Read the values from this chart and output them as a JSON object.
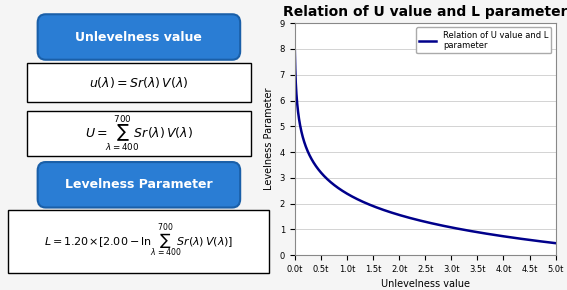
{
  "title": "Relation of U value and L parameter",
  "xlabel": "Unlevelness value",
  "ylabel": "Levelness Parameter",
  "legend_label": "Relation of U value and L\nparameter",
  "x_start": 0.01,
  "x_end": 5.01,
  "x_ticks": [
    0.01,
    0.51,
    1.01,
    1.51,
    2.01,
    2.51,
    3.01,
    3.51,
    4.01,
    4.51,
    5.01
  ],
  "x_tick_labels": [
    "0.0t",
    "0.5t",
    "1.0t",
    "1.5t",
    "2.0t",
    "2.5t",
    "3.0t",
    "3.5t",
    "4.0t",
    "4.5t",
    "5.0t"
  ],
  "y_min": 0,
  "y_max": 9,
  "y_ticks": [
    0,
    1,
    2,
    3,
    4,
    5,
    6,
    7,
    8,
    9
  ],
  "line_color": "#00008B",
  "line_width": 1.8,
  "bg_color": "#f0f0f0",
  "plot_bg_color": "#ffffff",
  "grid_color": "#cccccc",
  "title_fontsize": 10,
  "axis_label_fontsize": 7,
  "tick_fontsize": 6,
  "legend_fontsize": 6,
  "formula_a": 1.2,
  "formula_b": 2.0,
  "left_panel_bg": "#ffffff",
  "badge_color_top": "#1a6abf",
  "badge_color_bottom": "#3399ff",
  "badge_text_color": "#ffffff",
  "badge_text_1": "Unlevelness value",
  "badge_text_2": "Levelness Parameter",
  "formula1": "$u(\\lambda) = Sr(\\lambda)\\,V(\\lambda)$",
  "formula2": "$U = \\sum_{\\lambda=400}^{700} Sr(\\lambda)\\,V(\\lambda)$",
  "formula3": "$L = 1.20 \\times [2.00 - \\ln \\sum_{\\lambda=400}^{700} Sr(\\lambda)\\,V(\\lambda)]$"
}
